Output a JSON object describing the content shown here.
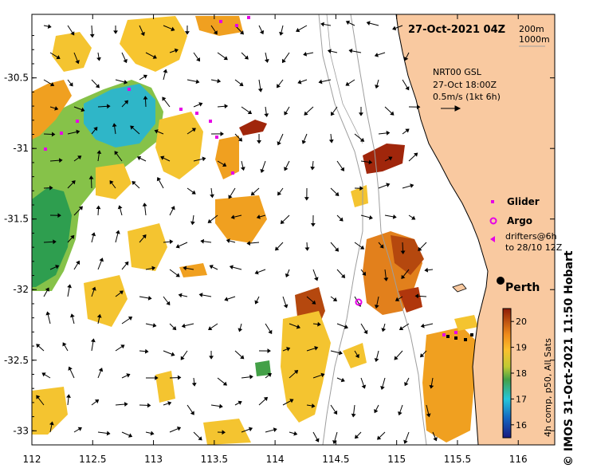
{
  "title": "27-Oct-2021 04Z",
  "depth_legend": [
    "200m",
    "1000m"
  ],
  "current_legend": {
    "product": "NRT00 GSL",
    "time": "27-Oct 18:00Z",
    "scale": "0.5m/s (1kt 6h)"
  },
  "symbol_legend": {
    "glider": "Glider",
    "argo": "Argo",
    "drifters_line1": "drifters@6h",
    "drifters_line2": "to 28/10 12Z"
  },
  "city": "Perth",
  "colorbar": {
    "ticks": [
      "16",
      "17",
      "18",
      "19",
      "20"
    ],
    "label": "4h comp, p50, All Sats"
  },
  "credit": "© IMOS 31-Oct-2021 11:50 Hobart",
  "axes": {
    "x_ticks": [
      "112",
      "112.5",
      "113",
      "113.5",
      "114",
      "114.5",
      "115",
      "115.5",
      "116"
    ],
    "y_ticks": [
      "-30.5",
      "-31",
      "-31.5",
      "-32",
      "-32.5",
      "-33"
    ],
    "x_range": [
      112,
      116.3
    ],
    "y_range": [
      -33.1,
      -30.05
    ]
  },
  "colors": {
    "land": "#f9c9a0",
    "sst_16": "#1a237e",
    "sst_17": "#29b6f6",
    "sst_18": "#43a047",
    "sst_19": "#fbc02d",
    "sst_20": "#8e1c08",
    "glider": "#e600e6"
  }
}
